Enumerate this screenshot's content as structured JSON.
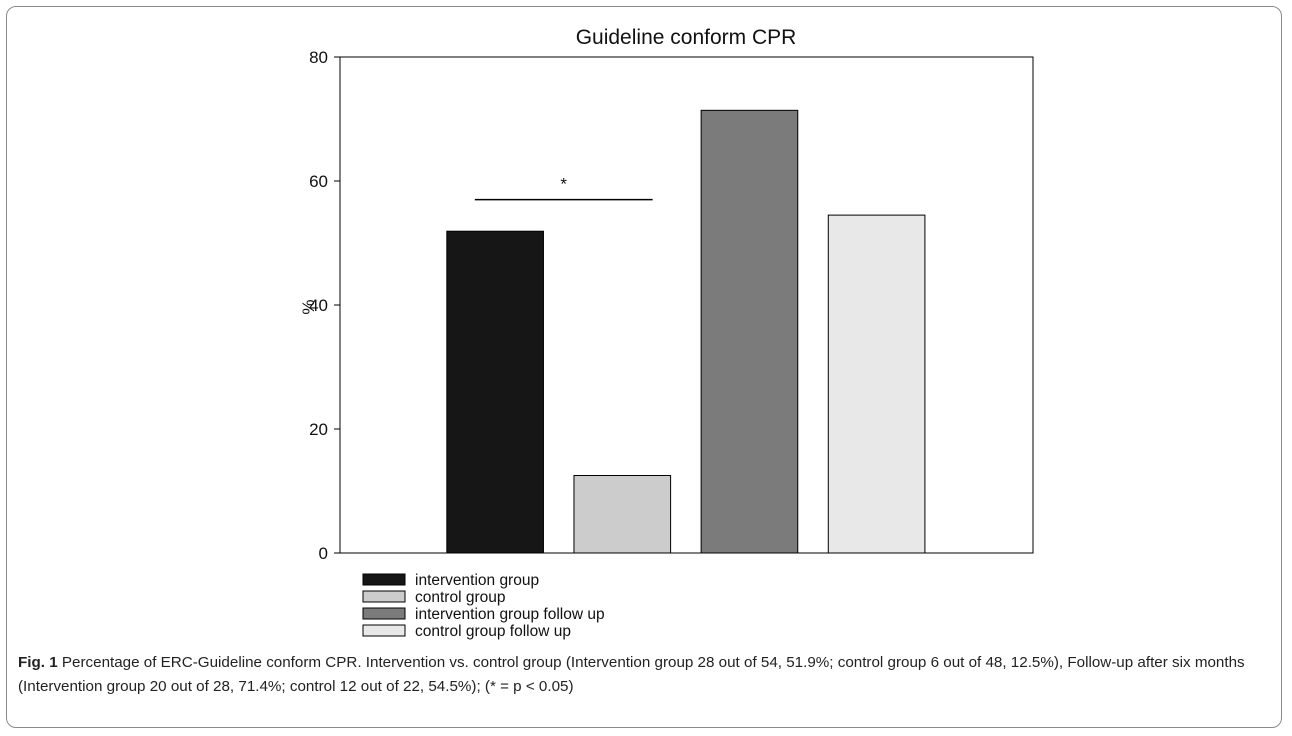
{
  "chart_data": {
    "type": "bar",
    "title": "Guideline conform CPR",
    "ylabel": "%",
    "xlabel": "",
    "ylim": [
      0,
      80
    ],
    "yticks": [
      0,
      20,
      40,
      60,
      80
    ],
    "categories": [
      "intervention group",
      "control group",
      "intervention group follow up",
      "control group follow up"
    ],
    "values": [
      51.9,
      12.5,
      71.4,
      54.5
    ],
    "colors": [
      "#161616",
      "#cccccc",
      "#7b7b7b",
      "#e8e8e8"
    ],
    "legend": {
      "placement": "bottom-left",
      "entries": [
        "intervention group",
        "control group",
        "intervention group follow up",
        "control group follow up"
      ]
    },
    "annotation": {
      "text": "*",
      "between": [
        0,
        1
      ],
      "y": 57
    },
    "grid": false
  },
  "caption": {
    "label": "Fig. 1",
    "text": " Percentage of ERC-Guideline conform CPR. Intervention vs. control group (Intervention group 28 out of 54, 51.9%; control group 6 out of 48, 12.5%), Follow-up after six months (Intervention group 20 out of 28, 71.4%; control 12 out of 22, 54.5%); (* = p < 0.05)"
  }
}
